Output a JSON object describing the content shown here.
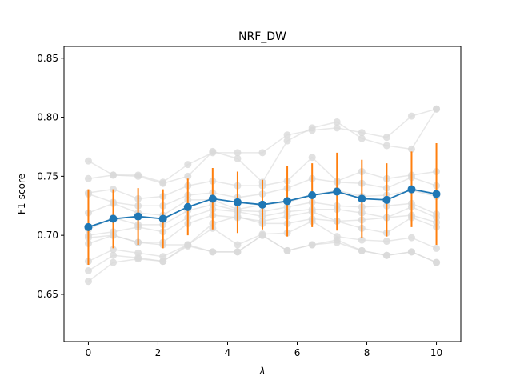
{
  "chart_data": {
    "type": "line",
    "title": "NRF_DW",
    "xlabel": "λ",
    "ylabel": "F1-score",
    "xlim": [
      -0.7,
      10.7
    ],
    "ylim": [
      0.61,
      0.86
    ],
    "xticks": [
      0,
      2,
      4,
      6,
      8,
      10
    ],
    "xtick_labels": [
      "0",
      "2",
      "4",
      "6",
      "8",
      "10"
    ],
    "yticks": [
      0.65,
      0.7,
      0.75,
      0.8,
      0.85
    ],
    "ytick_labels": [
      "0.65",
      "0.70",
      "0.75",
      "0.80",
      "0.85"
    ],
    "grid": false,
    "x": [
      0,
      0.714,
      1.429,
      2.143,
      2.857,
      3.571,
      4.286,
      5.0,
      5.714,
      6.429,
      7.143,
      7.857,
      8.571,
      9.286,
      10.0
    ],
    "mean_series": {
      "color": "#1f77b4",
      "values": [
        0.707,
        0.714,
        0.716,
        0.714,
        0.724,
        0.731,
        0.728,
        0.726,
        0.729,
        0.734,
        0.737,
        0.731,
        0.73,
        0.739,
        0.735
      ]
    },
    "error_bars": {
      "color": "#ff7f0e",
      "err": [
        0.032,
        0.025,
        0.024,
        0.025,
        0.024,
        0.026,
        0.026,
        0.021,
        0.03,
        0.027,
        0.033,
        0.033,
        0.031,
        0.032,
        0.043
      ]
    },
    "background_series_color": "#d9d9d9",
    "background_series": [
      [
        0.763,
        0.751,
        0.751,
        0.745,
        0.76,
        0.77,
        0.77,
        0.77,
        0.785,
        0.789,
        0.791,
        0.787,
        0.783,
        0.801,
        0.807
      ],
      [
        0.748,
        0.751,
        0.75,
        0.744,
        0.75,
        0.771,
        0.765,
        0.745,
        0.78,
        0.791,
        0.796,
        0.782,
        0.776,
        0.773,
        0.807
      ],
      [
        0.736,
        0.739,
        0.731,
        0.733,
        0.742,
        0.746,
        0.742,
        0.742,
        0.746,
        0.766,
        0.746,
        0.754,
        0.748,
        0.751,
        0.754
      ],
      [
        0.735,
        0.728,
        0.725,
        0.725,
        0.734,
        0.736,
        0.732,
        0.735,
        0.74,
        0.748,
        0.745,
        0.744,
        0.74,
        0.749,
        0.742
      ],
      [
        0.719,
        0.727,
        0.719,
        0.717,
        0.73,
        0.73,
        0.722,
        0.726,
        0.728,
        0.734,
        0.738,
        0.733,
        0.734,
        0.738,
        0.733
      ],
      [
        0.705,
        0.715,
        0.709,
        0.709,
        0.721,
        0.726,
        0.721,
        0.72,
        0.724,
        0.728,
        0.725,
        0.724,
        0.725,
        0.727,
        0.718
      ],
      [
        0.7,
        0.703,
        0.707,
        0.703,
        0.715,
        0.722,
        0.72,
        0.716,
        0.72,
        0.722,
        0.722,
        0.719,
        0.715,
        0.724,
        0.715
      ],
      [
        0.698,
        0.7,
        0.694,
        0.694,
        0.71,
        0.717,
        0.715,
        0.712,
        0.716,
        0.72,
        0.712,
        0.713,
        0.715,
        0.717,
        0.711
      ],
      [
        0.693,
        0.7,
        0.694,
        0.692,
        0.692,
        0.71,
        0.716,
        0.71,
        0.71,
        0.714,
        0.712,
        0.706,
        0.702,
        0.715,
        0.707
      ],
      [
        0.678,
        0.688,
        0.685,
        0.682,
        0.692,
        0.706,
        0.692,
        0.701,
        0.702,
        0.712,
        0.699,
        0.696,
        0.695,
        0.698,
        0.689
      ],
      [
        0.67,
        0.683,
        0.681,
        0.678,
        0.692,
        0.686,
        0.686,
        0.7,
        0.687,
        0.692,
        0.696,
        0.687,
        0.683,
        0.686,
        0.677
      ],
      [
        0.661,
        0.677,
        0.68,
        0.678,
        0.691,
        0.686,
        0.686,
        0.7,
        0.687,
        0.692,
        0.694,
        0.687,
        0.683,
        0.686,
        0.677
      ]
    ]
  }
}
